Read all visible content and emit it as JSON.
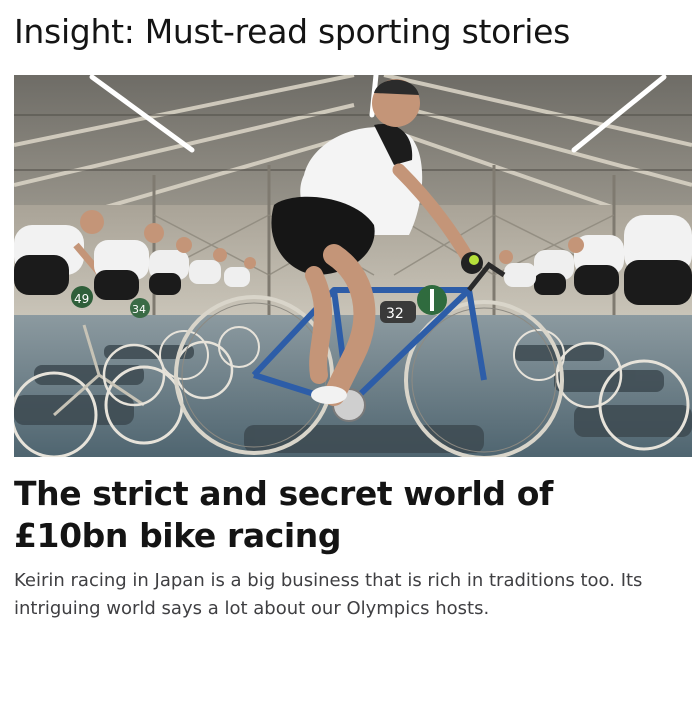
{
  "section": {
    "title": "Insight: Must-read sporting stories"
  },
  "story": {
    "image_description": "keirin-cyclists-training-indoors",
    "bike_numbers": [
      "49",
      "34",
      "32"
    ],
    "headline": "The strict and secret world of £10bn bike racing",
    "summary": "Keirin racing in Japan is a big business that is rich in traditions too. Its intriguing world says a lot about our Olympics hosts."
  },
  "colors": {
    "text": "#141414",
    "summary_text": "#3f3f42",
    "background": "#ffffff"
  }
}
